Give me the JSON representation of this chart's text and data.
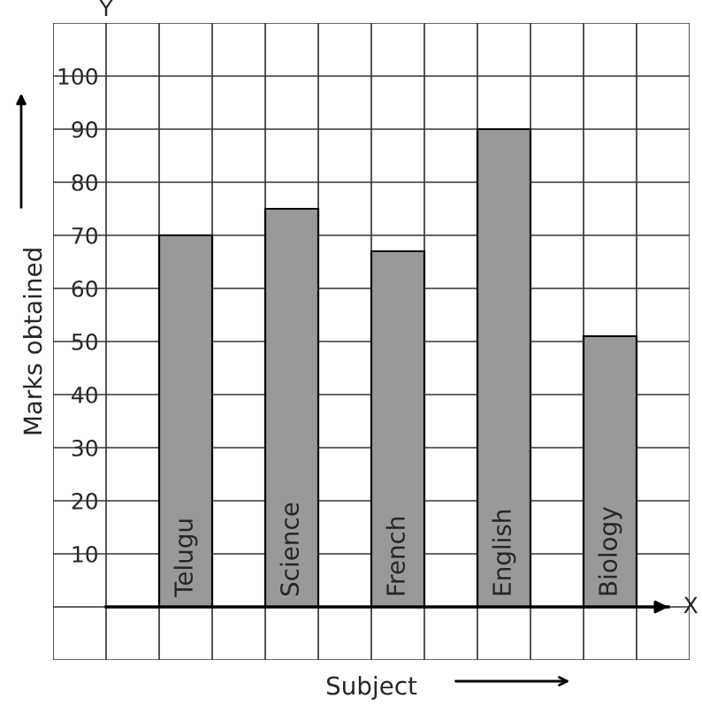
{
  "chart_data": {
    "type": "bar",
    "xlabel": "Subject",
    "ylabel": "Marks obtained",
    "categories": [
      "Telugu",
      "Science",
      "French",
      "English",
      "Biology"
    ],
    "values": [
      70,
      75,
      67,
      90,
      51
    ],
    "color": "#999999",
    "ylim": [
      -10,
      110
    ],
    "yticks": [
      10,
      20,
      30,
      40,
      50,
      60,
      70,
      80,
      90,
      100
    ],
    "annotations": [
      "X",
      "Y"
    ],
    "grid": true
  }
}
